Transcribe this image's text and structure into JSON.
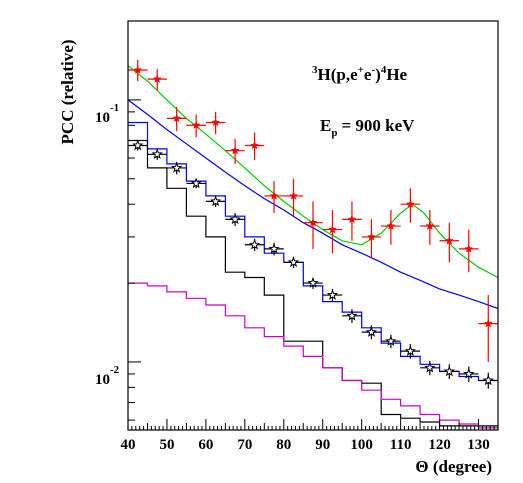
{
  "chart_data": {
    "type": "line",
    "xlabel": "Θ (degree)",
    "ylabel": "PCC (relative)",
    "xlim": [
      40,
      135
    ],
    "ylim": [
      0.0055,
      0.2
    ],
    "yscale": "log",
    "x_ticks": [
      40,
      50,
      60,
      70,
      80,
      90,
      100,
      110,
      120,
      130
    ],
    "y_ticks": [
      {
        "value": 0.1,
        "base": "10",
        "exponent": "-1"
      },
      {
        "value": 0.01,
        "base": "10",
        "exponent": "-2"
      }
    ],
    "annotations": {
      "reaction": {
        "sup1": "3",
        "a": "H(p,e",
        "sup2": "+",
        "b": "e",
        "sup3": "-",
        "c": ")",
        "sup4": "4",
        "d": "He"
      },
      "energy": {
        "a": "E",
        "sub": "p",
        "b": "= 900 keV"
      }
    },
    "series": [
      {
        "marker": "star-red",
        "color": "#ff0000",
        "x": [
          42.5,
          47.5,
          52.5,
          57.5,
          62.5,
          67.5,
          72.5,
          77.5,
          82.5,
          87.5,
          92.5,
          97.5,
          102.5,
          107.5,
          112.5,
          117.5,
          122.5,
          127.5,
          132.5
        ],
        "y": [
          0.13,
          0.12,
          0.085,
          0.08,
          0.082,
          0.064,
          0.067,
          0.043,
          0.043,
          0.034,
          0.032,
          0.035,
          0.03,
          0.033,
          0.04,
          0.033,
          0.029,
          0.027,
          0.014
        ],
        "yerr": [
          0.012,
          0.011,
          0.009,
          0.008,
          0.008,
          0.007,
          0.008,
          0.006,
          0.007,
          0.007,
          0.006,
          0.006,
          0.005,
          0.005,
          0.006,
          0.005,
          0.005,
          0.005,
          0.004
        ]
      },
      {
        "marker": "star-open",
        "color": "#000000",
        "x": [
          42.5,
          47.5,
          52.5,
          57.5,
          62.5,
          67.5,
          72.5,
          77.5,
          82.5,
          87.5,
          92.5,
          97.5,
          102.5,
          107.5,
          112.5,
          117.5,
          122.5,
          127.5,
          132.5
        ],
        "y": [
          0.067,
          0.062,
          0.055,
          0.048,
          0.041,
          0.035,
          0.028,
          0.027,
          0.024,
          0.02,
          0.018,
          0.015,
          0.013,
          0.012,
          0.011,
          0.0095,
          0.0092,
          0.009,
          0.0085
        ],
        "yerr": [
          0.003,
          0.003,
          0.003,
          0.002,
          0.002,
          0.002,
          0.0015,
          0.0015,
          0.0012,
          0.001,
          0.001,
          0.0009,
          0.0008,
          0.0007,
          0.0007,
          0.0006,
          0.0006,
          0.0006,
          0.0006
        ]
      },
      {
        "type": "curve",
        "color": "#00cc00",
        "x": [
          40,
          45,
          50,
          55,
          60,
          65,
          70,
          75,
          80,
          85,
          90,
          95,
          100,
          105,
          110,
          113,
          116,
          120,
          125,
          130,
          135
        ],
        "y": [
          0.135,
          0.118,
          0.1,
          0.085,
          0.074,
          0.064,
          0.055,
          0.047,
          0.041,
          0.036,
          0.032,
          0.029,
          0.028,
          0.031,
          0.037,
          0.04,
          0.037,
          0.031,
          0.026,
          0.023,
          0.021
        ]
      },
      {
        "type": "curve",
        "color": "#0000ff",
        "x": [
          40,
          45,
          50,
          55,
          60,
          65,
          70,
          75,
          80,
          85,
          90,
          95,
          100,
          105,
          110,
          115,
          120,
          125,
          130,
          135
        ],
        "y": [
          0.1,
          0.088,
          0.077,
          0.068,
          0.06,
          0.053,
          0.047,
          0.042,
          0.038,
          0.034,
          0.031,
          0.028,
          0.026,
          0.024,
          0.022,
          0.0205,
          0.019,
          0.018,
          0.017,
          0.016
        ]
      },
      {
        "type": "step",
        "color": "#0000ff",
        "edges": [
          40,
          45,
          50,
          55,
          60,
          65,
          70,
          75,
          80,
          85,
          90,
          95,
          100,
          105,
          110,
          115,
          120,
          125,
          130,
          135
        ],
        "values": [
          0.082,
          0.065,
          0.057,
          0.049,
          0.043,
          0.036,
          0.03,
          0.026,
          0.024,
          0.0195,
          0.017,
          0.0155,
          0.0135,
          0.0118,
          0.0105,
          0.0098,
          0.0092,
          0.0088,
          0.0085
        ]
      },
      {
        "type": "step",
        "color": "#000000",
        "edges": [
          40,
          45,
          50,
          55,
          60,
          65,
          70,
          75,
          80,
          85,
          90,
          95,
          100,
          105,
          110,
          115,
          120,
          125,
          130,
          135
        ],
        "values": [
          0.07,
          0.055,
          0.046,
          0.036,
          0.03,
          0.022,
          0.021,
          0.018,
          0.012,
          0.012,
          0.0095,
          0.0085,
          0.0083,
          0.0063,
          0.0061,
          0.0059,
          0.0057,
          0.0057,
          0.0057
        ]
      },
      {
        "type": "step",
        "color": "#cc00cc",
        "edges": [
          40,
          45,
          50,
          55,
          60,
          65,
          70,
          75,
          80,
          85,
          90,
          95,
          100,
          105,
          110,
          115,
          120,
          125,
          130,
          135
        ],
        "values": [
          0.02,
          0.0195,
          0.0185,
          0.0175,
          0.0165,
          0.015,
          0.0135,
          0.0125,
          0.0115,
          0.0105,
          0.0095,
          0.0085,
          0.0078,
          0.0072,
          0.0068,
          0.0063,
          0.006,
          0.0058,
          0.0056
        ]
      }
    ]
  }
}
